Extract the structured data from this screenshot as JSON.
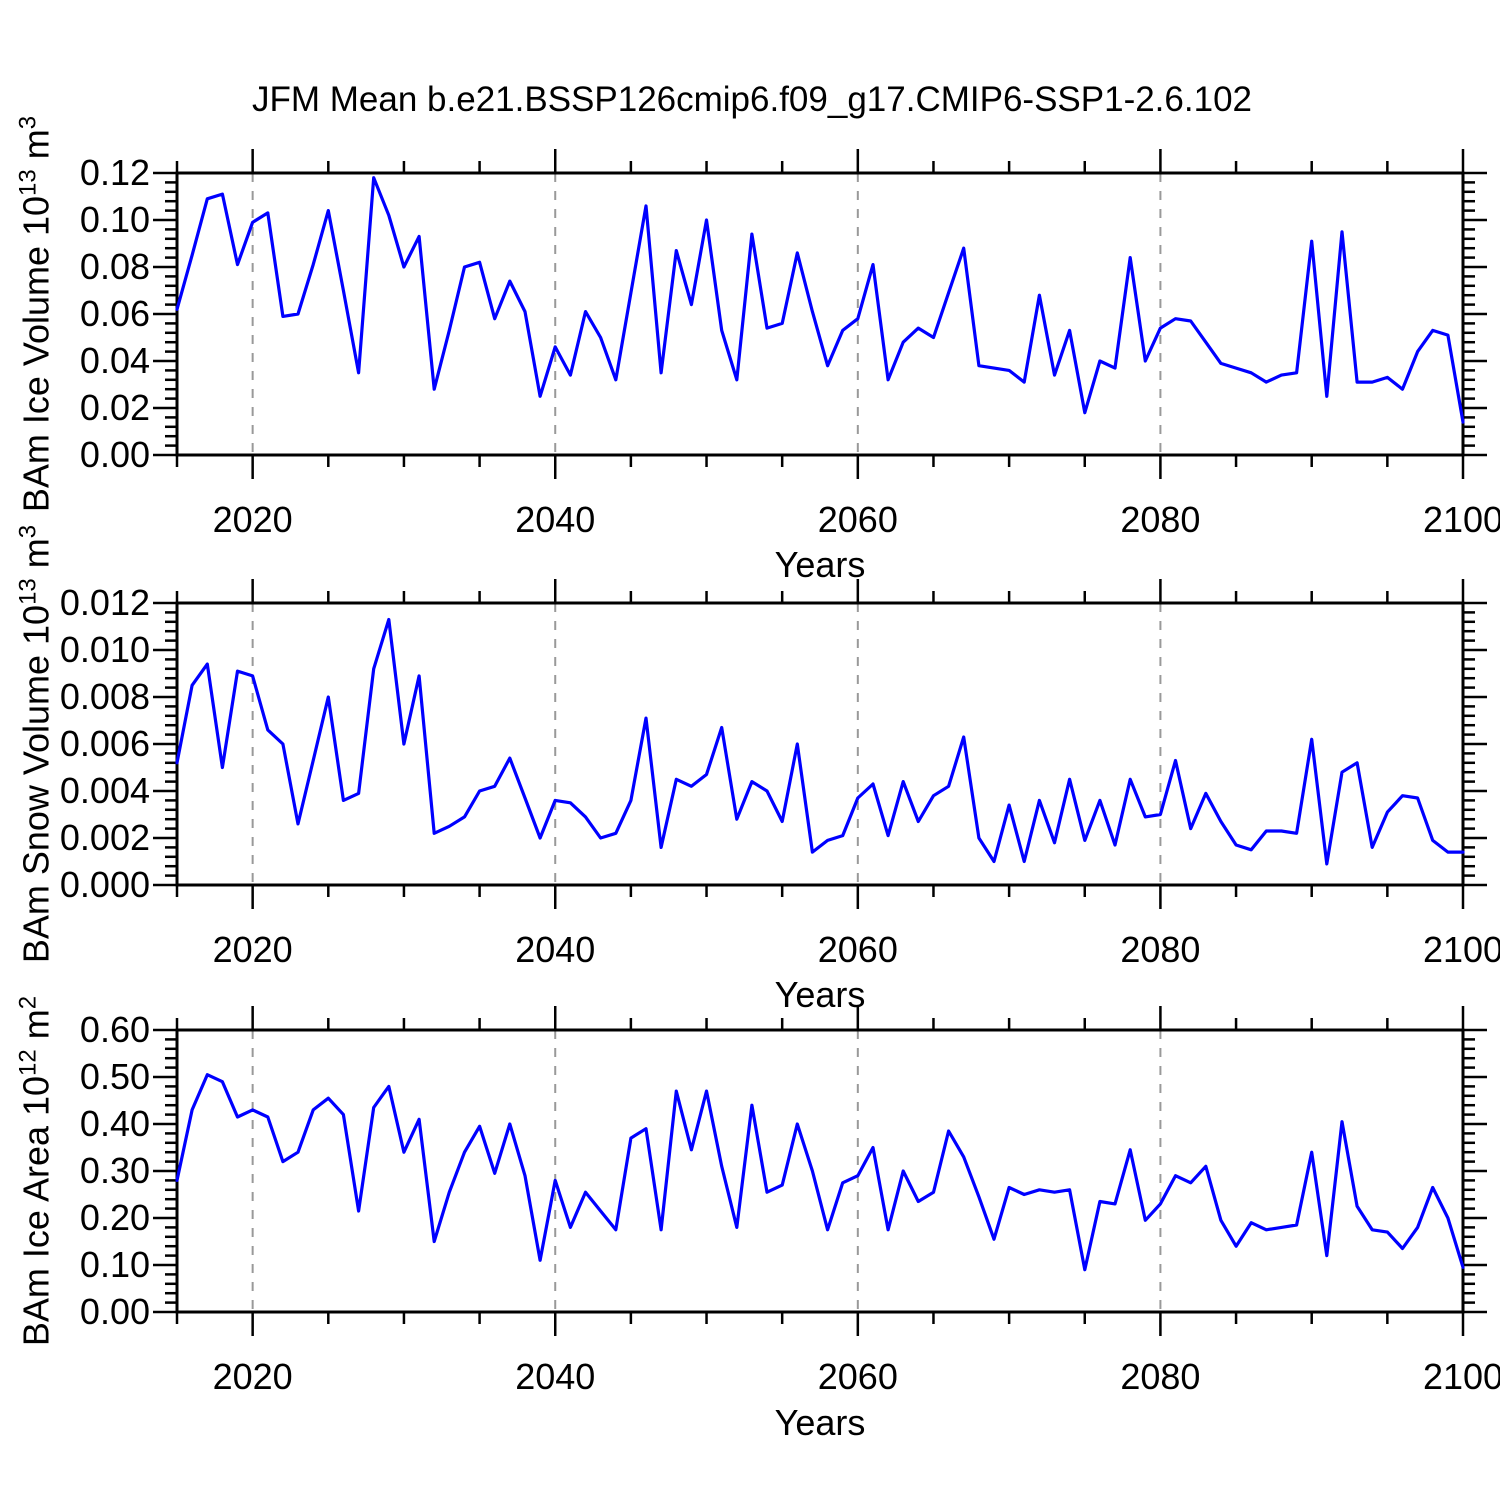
{
  "title": "JFM Mean b.e21.BSSP126cmip6.f09_g17.CMIP6-SSP1-2.6.102",
  "xlabel": "Years",
  "styles": {
    "line_color": "#0000ff",
    "grid_color": "#999999",
    "axis_color": "#000000",
    "background": "#ffffff"
  },
  "chart_data": [
    {
      "type": "line",
      "ylabel": {
        "prefix": "BAm Ice Volume 10",
        "exp": "13",
        "unit": " m",
        "unit_exp": "3"
      },
      "xlabel": "Years",
      "xlim": [
        2015,
        2100
      ],
      "ylim": [
        0,
        0.12
      ],
      "xticks": [
        2020,
        2040,
        2060,
        2080,
        2100
      ],
      "xminor_step": 5,
      "gridlines": [
        2020,
        2040,
        2060,
        2080
      ],
      "yticks": [
        [
          0.0,
          "0.00"
        ],
        [
          0.02,
          "0.02"
        ],
        [
          0.04,
          "0.04"
        ],
        [
          0.06,
          "0.06"
        ],
        [
          0.08,
          "0.08"
        ],
        [
          0.1,
          "0.10"
        ],
        [
          0.12,
          "0.12"
        ]
      ],
      "yminor_step": 0.004,
      "grid_on": false,
      "legend": "none",
      "years": [
        2015,
        2016,
        2017,
        2018,
        2019,
        2020,
        2021,
        2022,
        2023,
        2024,
        2025,
        2026,
        2027,
        2028,
        2029,
        2030,
        2031,
        2032,
        2033,
        2034,
        2035,
        2036,
        2037,
        2038,
        2039,
        2040,
        2041,
        2042,
        2043,
        2044,
        2045,
        2046,
        2047,
        2048,
        2049,
        2050,
        2051,
        2052,
        2053,
        2054,
        2055,
        2056,
        2057,
        2058,
        2059,
        2060,
        2061,
        2062,
        2063,
        2064,
        2065,
        2066,
        2067,
        2068,
        2069,
        2070,
        2071,
        2072,
        2073,
        2074,
        2075,
        2076,
        2077,
        2078,
        2079,
        2080,
        2081,
        2082,
        2083,
        2084,
        2085,
        2086,
        2087,
        2088,
        2089,
        2090,
        2091,
        2092,
        2093,
        2094,
        2095,
        2096,
        2097,
        2098,
        2099,
        2100
      ],
      "values": [
        0.062,
        0.085,
        0.109,
        0.111,
        0.081,
        0.099,
        0.103,
        0.059,
        0.06,
        0.081,
        0.104,
        0.07,
        0.035,
        0.118,
        0.102,
        0.08,
        0.093,
        0.028,
        0.053,
        0.08,
        0.082,
        0.058,
        0.074,
        0.061,
        0.025,
        0.046,
        0.034,
        0.061,
        0.05,
        0.032,
        0.069,
        0.106,
        0.035,
        0.087,
        0.064,
        0.1,
        0.053,
        0.032,
        0.094,
        0.054,
        0.056,
        0.086,
        0.061,
        0.038,
        0.053,
        0.058,
        0.081,
        0.032,
        0.048,
        0.054,
        0.05,
        0.069,
        0.088,
        0.038,
        0.037,
        0.036,
        0.031,
        0.068,
        0.034,
        0.053,
        0.018,
        0.04,
        0.037,
        0.084,
        0.04,
        0.054,
        0.058,
        0.057,
        0.048,
        0.039,
        0.037,
        0.035,
        0.031,
        0.034,
        0.035,
        0.091,
        0.025,
        0.095,
        0.031,
        0.031,
        0.033,
        0.028,
        0.044,
        0.053,
        0.051,
        0.014
      ]
    },
    {
      "type": "line",
      "ylabel": {
        "prefix": "BAm Snow Volume 10",
        "exp": "13",
        "unit": " m",
        "unit_exp": "3"
      },
      "xlabel": "Years",
      "xlim": [
        2015,
        2100
      ],
      "ylim": [
        0,
        0.012
      ],
      "xticks": [
        2020,
        2040,
        2060,
        2080,
        2100
      ],
      "xminor_step": 5,
      "gridlines": [
        2020,
        2040,
        2060,
        2080
      ],
      "yticks": [
        [
          0.0,
          "0.000"
        ],
        [
          0.002,
          "0.002"
        ],
        [
          0.004,
          "0.004"
        ],
        [
          0.006,
          "0.006"
        ],
        [
          0.008,
          "0.008"
        ],
        [
          0.01,
          "0.010"
        ],
        [
          0.012,
          "0.012"
        ]
      ],
      "yminor_step": 0.0004,
      "grid_on": false,
      "legend": "none",
      "years": [
        2015,
        2016,
        2017,
        2018,
        2019,
        2020,
        2021,
        2022,
        2023,
        2024,
        2025,
        2026,
        2027,
        2028,
        2029,
        2030,
        2031,
        2032,
        2033,
        2034,
        2035,
        2036,
        2037,
        2038,
        2039,
        2040,
        2041,
        2042,
        2043,
        2044,
        2045,
        2046,
        2047,
        2048,
        2049,
        2050,
        2051,
        2052,
        2053,
        2054,
        2055,
        2056,
        2057,
        2058,
        2059,
        2060,
        2061,
        2062,
        2063,
        2064,
        2065,
        2066,
        2067,
        2068,
        2069,
        2070,
        2071,
        2072,
        2073,
        2074,
        2075,
        2076,
        2077,
        2078,
        2079,
        2080,
        2081,
        2082,
        2083,
        2084,
        2085,
        2086,
        2087,
        2088,
        2089,
        2090,
        2091,
        2092,
        2093,
        2094,
        2095,
        2096,
        2097,
        2098,
        2099,
        2100
      ],
      "values": [
        0.0052,
        0.0085,
        0.0094,
        0.005,
        0.0091,
        0.0089,
        0.0066,
        0.006,
        0.0026,
        0.0053,
        0.008,
        0.0036,
        0.0039,
        0.0092,
        0.0113,
        0.006,
        0.0089,
        0.0022,
        0.0025,
        0.0029,
        0.004,
        0.0042,
        0.0054,
        0.0037,
        0.002,
        0.0036,
        0.0035,
        0.0029,
        0.002,
        0.0022,
        0.0036,
        0.0071,
        0.0016,
        0.0045,
        0.0042,
        0.0047,
        0.0067,
        0.0028,
        0.0044,
        0.004,
        0.0027,
        0.006,
        0.0014,
        0.0019,
        0.0021,
        0.0037,
        0.0043,
        0.0021,
        0.0044,
        0.0027,
        0.0038,
        0.0042,
        0.0063,
        0.002,
        0.001,
        0.0034,
        0.001,
        0.0036,
        0.0018,
        0.0045,
        0.0019,
        0.0036,
        0.0017,
        0.0045,
        0.0029,
        0.003,
        0.0053,
        0.0024,
        0.0039,
        0.0027,
        0.0017,
        0.0015,
        0.0023,
        0.0023,
        0.0022,
        0.0062,
        0.0009,
        0.0048,
        0.0052,
        0.0016,
        0.0031,
        0.0038,
        0.0037,
        0.0019,
        0.0014,
        0.0014
      ]
    },
    {
      "type": "line",
      "ylabel": {
        "prefix": "BAm Ice Area 10",
        "exp": "12",
        "unit": " m",
        "unit_exp": "2"
      },
      "xlabel": "Years",
      "xlim": [
        2015,
        2100
      ],
      "ylim": [
        0,
        0.6
      ],
      "xticks": [
        2020,
        2040,
        2060,
        2080,
        2100
      ],
      "xminor_step": 5,
      "gridlines": [
        2020,
        2040,
        2060,
        2080
      ],
      "yticks": [
        [
          0.0,
          "0.00"
        ],
        [
          0.1,
          "0.10"
        ],
        [
          0.2,
          "0.20"
        ],
        [
          0.3,
          "0.30"
        ],
        [
          0.4,
          "0.40"
        ],
        [
          0.5,
          "0.50"
        ],
        [
          0.6,
          "0.60"
        ]
      ],
      "yminor_step": 0.02,
      "grid_on": false,
      "legend": "none",
      "years": [
        2015,
        2016,
        2017,
        2018,
        2019,
        2020,
        2021,
        2022,
        2023,
        2024,
        2025,
        2026,
        2027,
        2028,
        2029,
        2030,
        2031,
        2032,
        2033,
        2034,
        2035,
        2036,
        2037,
        2038,
        2039,
        2040,
        2041,
        2042,
        2043,
        2044,
        2045,
        2046,
        2047,
        2048,
        2049,
        2050,
        2051,
        2052,
        2053,
        2054,
        2055,
        2056,
        2057,
        2058,
        2059,
        2060,
        2061,
        2062,
        2063,
        2064,
        2065,
        2066,
        2067,
        2068,
        2069,
        2070,
        2071,
        2072,
        2073,
        2074,
        2075,
        2076,
        2077,
        2078,
        2079,
        2080,
        2081,
        2082,
        2083,
        2084,
        2085,
        2086,
        2087,
        2088,
        2089,
        2090,
        2091,
        2092,
        2093,
        2094,
        2095,
        2096,
        2097,
        2098,
        2099,
        2100
      ],
      "values": [
        0.28,
        0.43,
        0.505,
        0.49,
        0.415,
        0.43,
        0.415,
        0.32,
        0.34,
        0.43,
        0.455,
        0.42,
        0.215,
        0.435,
        0.48,
        0.34,
        0.41,
        0.15,
        0.255,
        0.34,
        0.395,
        0.295,
        0.4,
        0.29,
        0.11,
        0.28,
        0.18,
        0.255,
        0.215,
        0.175,
        0.37,
        0.39,
        0.175,
        0.47,
        0.345,
        0.47,
        0.31,
        0.18,
        0.44,
        0.255,
        0.27,
        0.4,
        0.3,
        0.175,
        0.275,
        0.29,
        0.35,
        0.175,
        0.3,
        0.235,
        0.255,
        0.385,
        0.33,
        0.245,
        0.155,
        0.265,
        0.25,
        0.26,
        0.255,
        0.26,
        0.09,
        0.235,
        0.23,
        0.345,
        0.195,
        0.23,
        0.29,
        0.275,
        0.31,
        0.195,
        0.14,
        0.19,
        0.175,
        0.18,
        0.185,
        0.34,
        0.12,
        0.405,
        0.225,
        0.175,
        0.17,
        0.135,
        0.18,
        0.265,
        0.2,
        0.095
      ]
    }
  ]
}
